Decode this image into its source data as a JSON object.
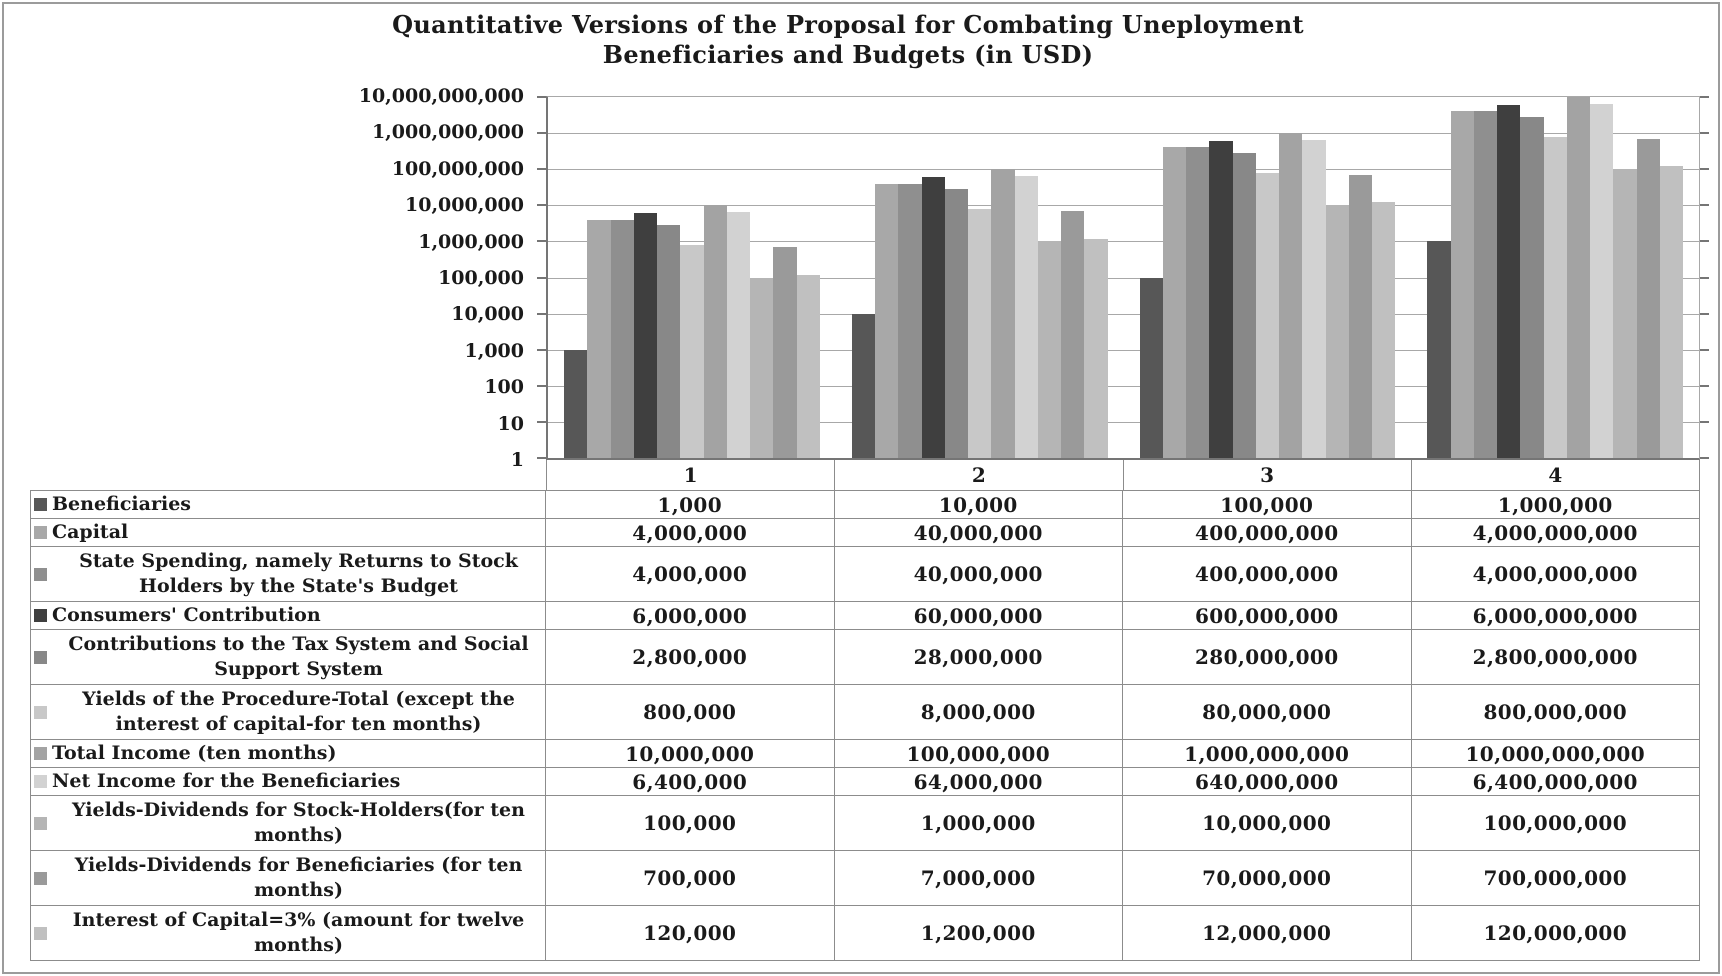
{
  "title": {
    "line1": "Quantitative Versions of the Proposal for Combating Uneployment",
    "line2": "Beneficiaries and Budgets (in USD)"
  },
  "chart_data": {
    "type": "bar",
    "y_scale": "log",
    "ylim": [
      1,
      10000000000
    ],
    "grid": true,
    "legend_position": "data-table-row-headers",
    "y_tick_labels": [
      "10,000,000,000",
      "1,000,000,000",
      "100,000,000",
      "10,000,000",
      "1,000,000",
      "100,000",
      "10,000",
      "1,000",
      "100",
      "10",
      "1"
    ],
    "categories": [
      "1",
      "2",
      "3",
      "4"
    ],
    "series": [
      {
        "name": "Beneficiaries",
        "color": "#575757",
        "values": [
          "1,000",
          "10,000",
          "100,000",
          "1,000,000"
        ]
      },
      {
        "name": "Capital",
        "color": "#A8A8A8",
        "values": [
          "4,000,000",
          "40,000,000",
          "400,000,000",
          "4,000,000,000"
        ]
      },
      {
        "name": "State Spending, namely Returns to Stock Holders by the State's Budget",
        "color": "#8F8F8F",
        "values": [
          "4,000,000",
          "40,000,000",
          "400,000,000",
          "4,000,000,000"
        ]
      },
      {
        "name": "Consumers' Contribution",
        "color": "#3F3F3F",
        "values": [
          "6,000,000",
          "60,000,000",
          "600,000,000",
          "6,000,000,000"
        ]
      },
      {
        "name": "Contributions to the Tax System and Social Support System",
        "color": "#888888",
        "values": [
          "2,800,000",
          "28,000,000",
          "280,000,000",
          "2,800,000,000"
        ]
      },
      {
        "name": "Yields of the Procedure-Total (except the interest of capital-for ten months)",
        "color": "#C8C8C8",
        "values": [
          "800,000",
          "8,000,000",
          "80,000,000",
          "800,000,000"
        ]
      },
      {
        "name": "Total Income (ten months)",
        "color": "#A3A3A3",
        "values": [
          "10,000,000",
          "100,000,000",
          "1,000,000,000",
          "10,000,000,000"
        ]
      },
      {
        "name": "Net Income for the Beneficiaries",
        "color": "#D2D2D2",
        "values": [
          "6,400,000",
          "64,000,000",
          "640,000,000",
          "6,400,000,000"
        ]
      },
      {
        "name": "Yields-Dividends for Stock-Holders(for ten months)",
        "color": "#B5B5B5",
        "values": [
          "100,000",
          "1,000,000",
          "10,000,000",
          "100,000,000"
        ]
      },
      {
        "name": "Yields-Dividends for Beneficiaries (for ten months)",
        "color": "#9A9A9A",
        "values": [
          "700,000",
          "7,000,000",
          "70,000,000",
          "700,000,000"
        ]
      },
      {
        "name": "Interest of Capital=3% (amount for twelve months)",
        "color": "#C0C0C0",
        "values": [
          "120,000",
          "1,200,000",
          "12,000,000",
          "120,000,000"
        ]
      }
    ]
  }
}
